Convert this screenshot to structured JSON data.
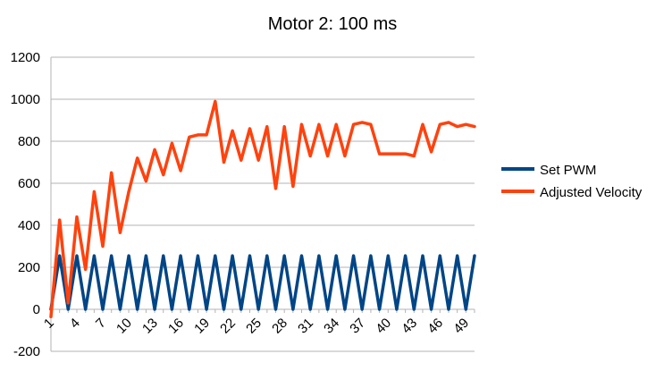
{
  "chart_data": {
    "type": "line",
    "title": "Motor 2: 100 ms",
    "xlabel": "",
    "ylabel": "",
    "ylim": [
      -200,
      1200
    ],
    "ytick_step": 200,
    "y_ticks": [
      "-200",
      "0",
      "200",
      "400",
      "600",
      "800",
      "1000",
      "1200"
    ],
    "x": [
      1,
      2,
      3,
      4,
      5,
      6,
      7,
      8,
      9,
      10,
      11,
      12,
      13,
      14,
      15,
      16,
      17,
      18,
      19,
      20,
      21,
      22,
      23,
      24,
      25,
      26,
      27,
      28,
      29,
      30,
      31,
      32,
      33,
      34,
      35,
      36,
      37,
      38,
      39,
      40,
      41,
      42,
      43,
      44,
      45,
      46,
      47,
      48,
      49,
      50
    ],
    "x_tick_labels": [
      "1",
      "4",
      "7",
      "10",
      "13",
      "16",
      "19",
      "22",
      "25",
      "28",
      "31",
      "34",
      "37",
      "40",
      "43",
      "46",
      "49"
    ],
    "grid": "horizontal",
    "legend_position": "right",
    "series": [
      {
        "name": "Set PWM",
        "color": "#004586",
        "values": [
          0,
          255,
          0,
          255,
          0,
          255,
          0,
          255,
          0,
          255,
          0,
          255,
          0,
          255,
          0,
          255,
          0,
          255,
          0,
          255,
          0,
          255,
          0,
          255,
          0,
          255,
          0,
          255,
          0,
          255,
          0,
          255,
          0,
          255,
          0,
          255,
          0,
          255,
          0,
          255,
          0,
          255,
          0,
          255,
          0,
          255,
          0,
          255,
          0,
          255
        ]
      },
      {
        "name": "Adjusted Velocity",
        "color": "#ff420e",
        "values": [
          -35,
          425,
          30,
          440,
          190,
          560,
          300,
          650,
          365,
          560,
          720,
          610,
          760,
          640,
          790,
          660,
          820,
          830,
          830,
          990,
          700,
          850,
          710,
          860,
          710,
          870,
          575,
          870,
          585,
          880,
          730,
          880,
          730,
          880,
          730,
          880,
          890,
          880,
          740,
          740,
          740,
          740,
          730,
          880,
          750,
          880,
          890,
          870,
          880,
          870
        ]
      }
    ]
  }
}
